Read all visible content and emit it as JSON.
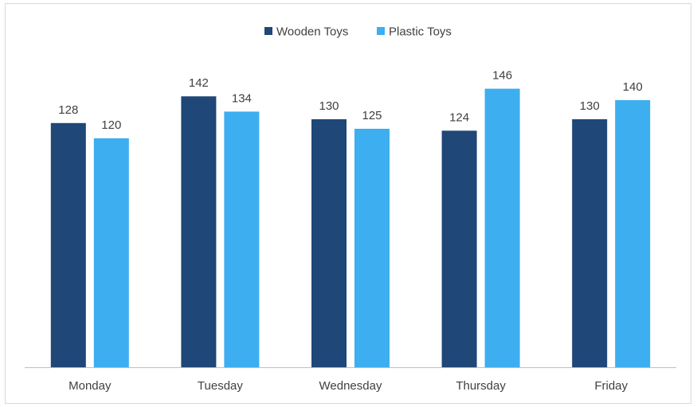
{
  "chart_data": {
    "type": "bar",
    "categories": [
      "Monday",
      "Tuesday",
      "Wednesday",
      "Thursday",
      "Friday"
    ],
    "series": [
      {
        "name": "Wooden Toys",
        "values": [
          128,
          142,
          130,
          124,
          130
        ],
        "color": "#1f4778"
      },
      {
        "name": "Plastic Toys",
        "values": [
          120,
          134,
          125,
          146,
          140
        ],
        "color": "#3daef0"
      }
    ],
    "title": "",
    "xlabel": "",
    "ylabel": "",
    "ylim": [
      0,
      160
    ],
    "grid": false,
    "legend_position": "top-center",
    "data_labels": true,
    "axis_color": "#bfbfbf",
    "label_color": "#404040"
  }
}
